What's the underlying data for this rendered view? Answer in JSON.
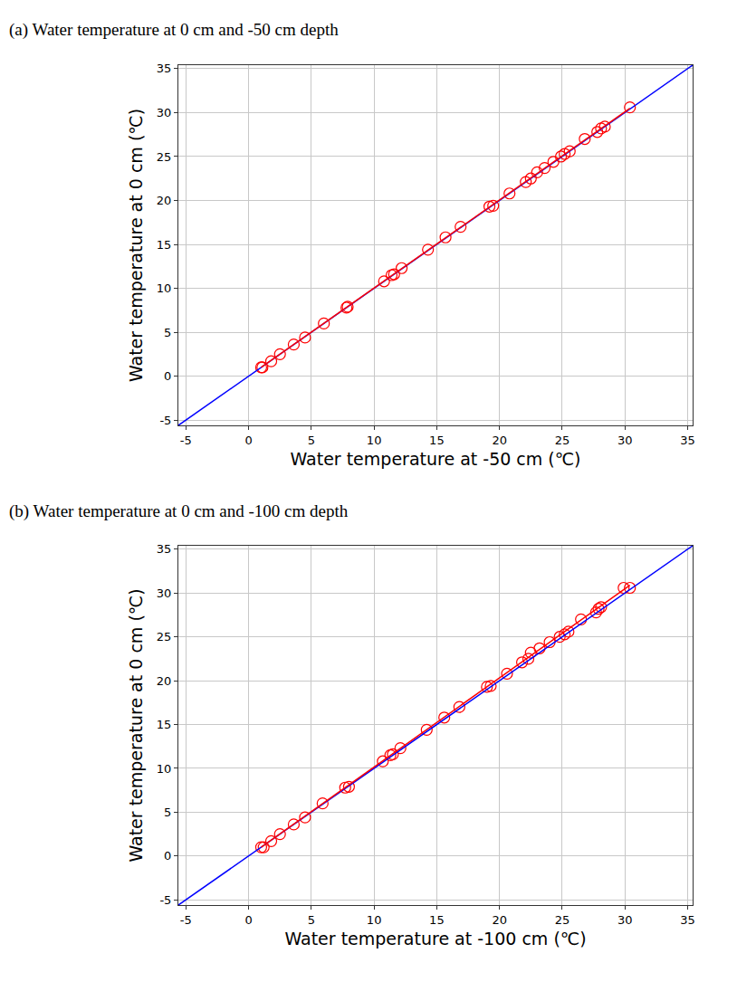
{
  "chart_data": [
    {
      "type": "scatter",
      "title": "(a) Water temperature at 0 cm and -50 cm depth",
      "x_label": "Water temperature at -50 cm (℃)",
      "y_label": "Water temperature at 0 cm (℃)",
      "xlim": [
        -5.6,
        35.4
      ],
      "ylim": [
        -5.6,
        35.4
      ],
      "xticks": [
        -5,
        0,
        5,
        10,
        15,
        20,
        25,
        30,
        35
      ],
      "yticks": [
        -5,
        0,
        5,
        10,
        15,
        20,
        25,
        30,
        35
      ],
      "grid": true,
      "series": [
        {
          "type": "scatter",
          "color": "#ff0000",
          "marker": "circle-open",
          "x": [
            1.0,
            1.1,
            1.8,
            2.5,
            3.6,
            4.5,
            6.0,
            7.8,
            7.9,
            10.8,
            11.4,
            11.6,
            12.2,
            14.3,
            15.7,
            16.9,
            19.2,
            19.5,
            20.8,
            22.1,
            22.5,
            23.0,
            23.6,
            24.3,
            24.9,
            25.2,
            25.6,
            26.8,
            27.8,
            28.1,
            28.4,
            30.4
          ],
          "values": [
            1.0,
            1.0,
            1.7,
            2.5,
            3.6,
            4.4,
            6.0,
            7.8,
            7.9,
            10.8,
            11.5,
            11.6,
            12.3,
            14.4,
            15.8,
            17.0,
            19.3,
            19.4,
            20.8,
            22.1,
            22.5,
            23.2,
            23.7,
            24.4,
            25.0,
            25.3,
            25.6,
            27.0,
            27.8,
            28.2,
            28.4,
            30.6
          ]
        },
        {
          "type": "line",
          "color": "#0000ff",
          "line_style": "solid",
          "x": [
            -5.6,
            35.4
          ],
          "values": [
            -5.6,
            35.4
          ]
        },
        {
          "type": "line",
          "color": "#ff0000",
          "line_style": "solid",
          "x": [
            1.0,
            30.4
          ],
          "values": [
            1.0,
            30.5
          ]
        }
      ]
    },
    {
      "type": "scatter",
      "title": "(b) Water temperature at 0 cm and -100 cm depth",
      "x_label": "Water temperature at -100 cm (℃)",
      "y_label": "Water temperature at 0 cm (℃)",
      "xlim": [
        -5.6,
        35.4
      ],
      "ylim": [
        -5.6,
        35.4
      ],
      "xticks": [
        -5,
        0,
        5,
        10,
        15,
        20,
        25,
        30,
        35
      ],
      "yticks": [
        -5,
        0,
        5,
        10,
        15,
        20,
        25,
        30,
        35
      ],
      "grid": true,
      "series": [
        {
          "type": "scatter",
          "color": "#ff0000",
          "marker": "circle-open",
          "x": [
            1.0,
            1.2,
            1.8,
            2.5,
            3.6,
            4.5,
            5.9,
            7.7,
            8.0,
            10.7,
            11.3,
            11.5,
            12.1,
            14.2,
            15.6,
            16.8,
            19.0,
            19.3,
            20.6,
            21.8,
            22.3,
            22.5,
            23.2,
            24.0,
            24.8,
            25.2,
            25.5,
            26.5,
            27.7,
            27.9,
            28.1,
            29.9,
            30.4
          ],
          "values": [
            1.0,
            1.0,
            1.7,
            2.5,
            3.6,
            4.4,
            6.0,
            7.8,
            7.9,
            10.8,
            11.5,
            11.6,
            12.3,
            14.4,
            15.8,
            17.0,
            19.3,
            19.4,
            20.8,
            22.1,
            22.5,
            23.2,
            23.7,
            24.4,
            25.0,
            25.3,
            25.6,
            27.0,
            27.8,
            28.2,
            28.4,
            30.6,
            30.6
          ]
        },
        {
          "type": "line",
          "color": "#0000ff",
          "line_style": "solid",
          "x": [
            -5.6,
            35.4
          ],
          "values": [
            -5.6,
            35.4
          ]
        },
        {
          "type": "line",
          "color": "#ff0000",
          "line_style": "solid",
          "x": [
            1.0,
            30.4
          ],
          "values": [
            1.0,
            30.9
          ]
        }
      ]
    }
  ]
}
